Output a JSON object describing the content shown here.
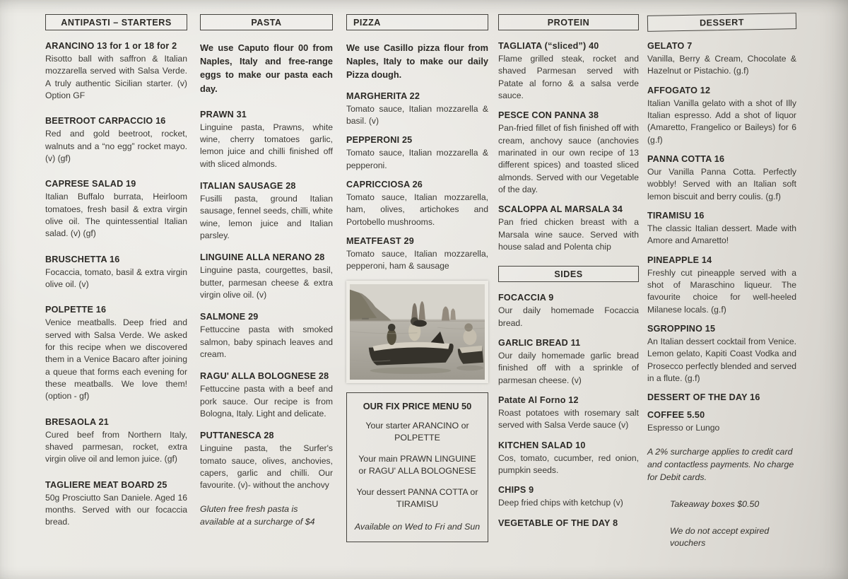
{
  "document_type": "restaurant-menu",
  "columns": [
    {
      "id": "antipasti",
      "header": "ANTIPASTI – STARTERS",
      "blocks": [
        {
          "type": "item",
          "name": "ARANCINO 13 for 1 or 18 for 2",
          "desc": "Risotto ball with saffron & Italian mozzarella served with Salsa Verde. A truly authentic Sicilian starter. (v) Option GF"
        },
        {
          "type": "item",
          "name": "BEETROOT CARPACCIO 16",
          "desc": "Red and gold beetroot, rocket, walnuts and a “no egg” rocket mayo. (v) (gf)"
        },
        {
          "type": "item",
          "name": "CAPRESE SALAD 19",
          "desc": "Italian Buffalo burrata, Heirloom tomatoes, fresh basil & extra virgin olive oil. The quintessential Italian salad. (v) (gf)"
        },
        {
          "type": "item",
          "name": "BRUSCHETTA 16",
          "desc": "Focaccia, tomato, basil & extra virgin olive oil. (v)"
        },
        {
          "type": "item",
          "name": "POLPETTE 16",
          "desc": "Venice meatballs. Deep fried and served with Salsa Verde. We asked for this recipe when we discovered them in a Venice Bacaro after joining a queue that forms each evening for these meatballs. We love them! (option - gf)"
        },
        {
          "type": "item",
          "name": "BRESAOLA 21",
          "desc": "Cured beef from Northern Italy, shaved parmesan, rocket, extra virgin olive oil and lemon juice. (gf)"
        },
        {
          "type": "item",
          "name": "TAGLIERE MEAT BOARD 25",
          "desc": "50g Prosciutto San Daniele. Aged 16 months. Served with our focaccia bread."
        }
      ]
    },
    {
      "id": "pasta",
      "header": "PASTA",
      "blocks": [
        {
          "type": "intro",
          "text": "We use Caputo flour 00 from Naples, Italy and free-range eggs to make our pasta each day."
        },
        {
          "type": "item",
          "name": "PRAWN 31",
          "desc": "Linguine pasta, Prawns, white wine, cherry tomatoes garlic, lemon juice and chilli finished off with sliced almonds."
        },
        {
          "type": "item",
          "name": "ITALIAN SAUSAGE 28",
          "desc": "Fusilli pasta, ground Italian sausage, fennel seeds, chilli, white wine, lemon juice and Italian parsley."
        },
        {
          "type": "item",
          "name": "LINGUINE ALLA NERANO 28",
          "desc": "Linguine pasta, courgettes, basil, butter, parmesan cheese & extra virgin olive oil. (v)"
        },
        {
          "type": "item",
          "name": "SALMONE 29",
          "desc": "Fettuccine pasta with smoked salmon, baby spinach leaves and cream."
        },
        {
          "type": "item",
          "name": "RAGU' ALLA BOLOGNESE 28",
          "desc": "Fettuccine pasta with a beef and pork sauce. Our recipe is from Bologna, Italy. Light and delicate."
        },
        {
          "type": "item",
          "name": "PUTTANESCA 28",
          "desc": "Linguine pasta, the Surfer's tomato sauce, olives, anchovies, capers, garlic and chilli. Our favourite. (v)- without the anchovy"
        },
        {
          "type": "note",
          "text": "Gluten free fresh pasta is available at a surcharge of $4"
        }
      ]
    },
    {
      "id": "pizza",
      "header": "PIZZA",
      "blocks": [
        {
          "type": "intro",
          "text": "We use Casillo pizza flour from Naples, Italy to make our daily Pizza dough."
        },
        {
          "type": "item",
          "name": "MARGHERITA 22",
          "desc": "Tomato sauce, Italian mozzarella & basil. (v)"
        },
        {
          "type": "item",
          "name": "PEPPERONI 25",
          "desc": "Tomato sauce, Italian mozzarella & pepperoni."
        },
        {
          "type": "item",
          "name": "CAPRICCIOSA 26",
          "desc": "Tomato sauce, Italian mozzarella, ham, olives, artichokes and Portobello mushrooms."
        },
        {
          "type": "item",
          "name": "MEATFEAST 29",
          "desc": "Tomato sauce, Italian mozzarella, pepperoni, ham & sausage"
        },
        {
          "type": "photo",
          "alt": "vintage black-and-white photo of people in small boats off Capri"
        },
        {
          "type": "fixbox",
          "title": "OUR FIX PRICE MENU 50",
          "lines": [
            "Your starter ARANCINO or POLPETTE",
            "Your main PRAWN LINGUINE or RAGU' ALLA BOLOGNESE",
            "Your dessert PANNA COTTA or TIRAMISU"
          ],
          "footer": "Available on Wed to Fri and Sun"
        }
      ]
    },
    {
      "id": "protein",
      "header": "PROTEIN",
      "blocks": [
        {
          "type": "item",
          "name": "TAGLIATA (“sliced”) 40",
          "desc": "Flame grilled steak, rocket and shaved Parmesan served with Patate al forno & a salsa verde sauce."
        },
        {
          "type": "item",
          "name": "PESCE CON PANNA 38",
          "desc": "Pan-fried fillet of fish finished off with cream, anchovy sauce (anchovies marinated in our own recipe of 13 different spices) and toasted sliced almonds. Served with our Vegetable of the day."
        },
        {
          "type": "item",
          "name": "SCALOPPA AL MARSALA 34",
          "desc": "Pan fried chicken breast with a Marsala wine sauce. Served with house salad and Polenta chip"
        },
        {
          "type": "subheader",
          "label": "SIDES"
        },
        {
          "type": "item",
          "name": "FOCACCIA 9",
          "desc": "Our daily homemade Focaccia bread."
        },
        {
          "type": "item",
          "name": "GARLIC BREAD 11",
          "desc": "Our daily homemade garlic bread finished off with a sprinkle of parmesan cheese. (v)"
        },
        {
          "type": "item",
          "name": "Patate Al Forno 12",
          "desc": "Roast potatoes with rosemary salt served with Salsa Verde sauce (v)"
        },
        {
          "type": "item",
          "name": "KITCHEN SALAD 10",
          "desc": "Cos, tomato, cucumber, red onion, pumpkin seeds."
        },
        {
          "type": "item",
          "name": "CHIPS 9",
          "desc": "Deep fried chips with ketchup (v)"
        },
        {
          "type": "item",
          "name": "VEGETABLE OF THE DAY 8",
          "desc": ""
        }
      ]
    },
    {
      "id": "dessert",
      "header": "DESSERT",
      "blocks": [
        {
          "type": "item",
          "name": "GELATO 7",
          "desc": "Vanilla, Berry & Cream, Chocolate & Hazelnut or Pistachio. (g.f)"
        },
        {
          "type": "item",
          "name": "AFFOGATO 12",
          "desc": "Italian Vanilla gelato with a shot of Illy Italian espresso. Add a shot of liquor (Amaretto, Frangelico or Baileys) for 6 (g.f)"
        },
        {
          "type": "item",
          "name": "PANNA COTTA 16",
          "desc": "Our Vanilla Panna Cotta. Perfectly wobbly! Served with an Italian soft lemon biscuit and berry coulis. (g.f)"
        },
        {
          "type": "item",
          "name": "TIRAMISU 16",
          "desc": "The classic Italian dessert. Made with Amore and Amaretto!"
        },
        {
          "type": "item",
          "name": "PINEAPPLE 14",
          "desc": "Freshly cut pineapple served with a shot of Maraschino liqueur. The favourite choice for well-heeled Milanese locals. (g.f)"
        },
        {
          "type": "item",
          "name": "SGROPPINO 15",
          "desc": "An Italian dessert cocktail from Venice. Lemon gelato, Kapiti Coast Vodka and Prosecco perfectly blended and served in a flute. (g.f)"
        },
        {
          "type": "item",
          "name": "DESSERT OF THE DAY  16",
          "desc": ""
        },
        {
          "type": "item",
          "name": "COFFEE 5.50",
          "desc": "Espresso or Lungo"
        },
        {
          "type": "note",
          "text": "A 2% surcharge applies to credit card and contactless payments. No charge for Debit cards."
        },
        {
          "type": "note",
          "text": "Takeaway boxes $0.50",
          "indent": true
        },
        {
          "type": "note",
          "text": "We do not accept expired vouchers",
          "indent": true
        }
      ]
    }
  ],
  "photo_palette": {
    "sky": "#d6d3cb",
    "sea_top": "#b9b5ac",
    "sea_bottom": "#9d998f",
    "cliff": "#8b8679",
    "rocks": "#7d7468",
    "boat": "#35322b",
    "blanket": "#d5cfc2"
  }
}
